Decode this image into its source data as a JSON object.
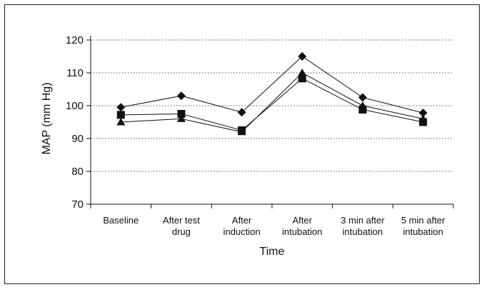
{
  "chart_data": {
    "type": "line",
    "title": "",
    "xlabel": "Time",
    "ylabel": "MAP (mm Hg)",
    "ylim": [
      70,
      120
    ],
    "yticks": [
      70,
      80,
      90,
      100,
      110,
      120
    ],
    "grid": "horizontal-dotted",
    "legend": "none",
    "categories": [
      [
        "Baseline"
      ],
      [
        "After test",
        "drug"
      ],
      [
        "After",
        "induction"
      ],
      [
        "After",
        "intubation"
      ],
      [
        "3 min after",
        "intubation"
      ],
      [
        "5 min after",
        "intubation"
      ]
    ],
    "series": [
      {
        "marker": "diamond",
        "values": [
          99.5,
          103,
          98,
          115,
          102.5,
          97.8
        ]
      },
      {
        "marker": "triangle",
        "values": [
          95,
          96,
          92,
          110,
          100,
          96
        ]
      },
      {
        "marker": "square",
        "values": [
          97.2,
          97.5,
          92.5,
          108.3,
          98.8,
          95
        ]
      }
    ]
  }
}
